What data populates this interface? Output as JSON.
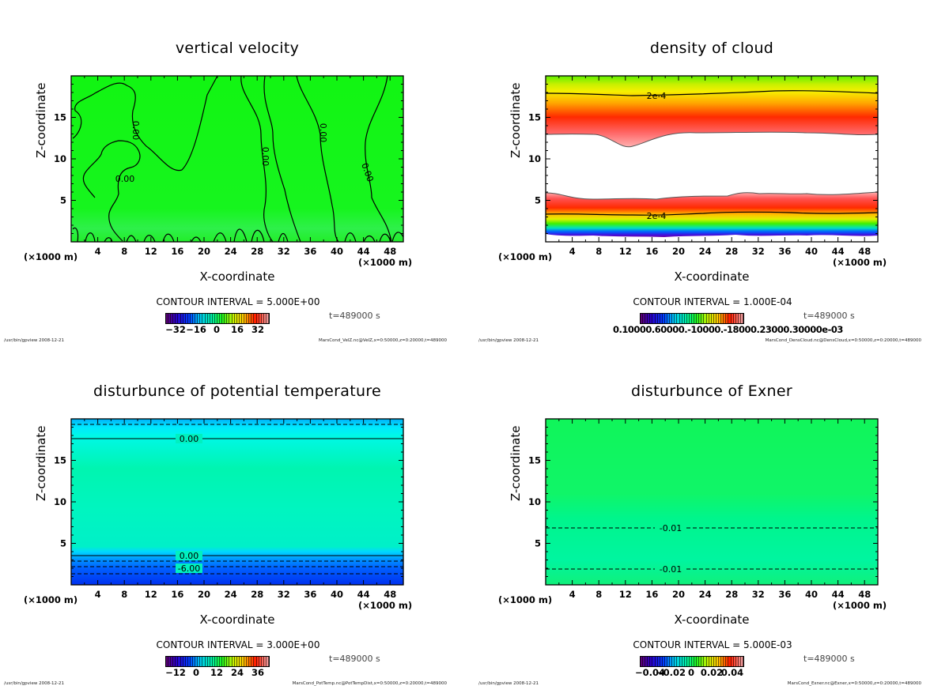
{
  "chart_data": [
    {
      "type": "heatmap",
      "title": "vertical velocity",
      "xlabel": "X-coordinate",
      "ylabel": "Z-coordinate",
      "x_unit_label": "(×1000 m)",
      "xlim": [
        0,
        50
      ],
      "ylim": [
        0,
        20
      ],
      "x_ticks": [
        "4",
        "8",
        "12",
        "16",
        "20",
        "24",
        "28",
        "32",
        "36",
        "40",
        "44",
        "48"
      ],
      "y_ticks": [
        "5",
        "10",
        "15"
      ],
      "contour_interval": "CONTOUR INTERVAL = 5.000E+00",
      "contour_labels": [
        "0.00",
        "0.00",
        "0.00",
        "0.00",
        "0.00",
        "0.00"
      ],
      "colorbar_ticks": [
        "−32",
        "−16",
        "0",
        "16",
        "32"
      ],
      "colorbar_range": [
        -40,
        40
      ],
      "time": "t=489000 s",
      "footer_left": "/usr/bin/gpview  2008-12-21",
      "footer_right": "MarsCond_VelZ.nc@VelZ,x=0:50000,z=0:20000,t=489000",
      "field_color": "#19f519"
    },
    {
      "type": "heatmap",
      "title": "density of cloud",
      "xlabel": "X-coordinate",
      "ylabel": "Z-coordinate",
      "x_unit_label": "(×1000 m)",
      "xlim": [
        0,
        50
      ],
      "ylim": [
        0,
        20
      ],
      "x_ticks": [
        "4",
        "8",
        "12",
        "16",
        "20",
        "24",
        "28",
        "32",
        "36",
        "40",
        "44",
        "48"
      ],
      "y_ticks": [
        "5",
        "10",
        "15"
      ],
      "contour_interval": "CONTOUR INTERVAL = 1.000E-04",
      "contour_labels": [
        "2e-4",
        "2e-4"
      ],
      "colorbar_tick_text": "0.10000.60000.-10000.-18000.23000.30000e-03",
      "colorbar_range": [
        0,
        0.0003
      ],
      "time": "t=489000 s",
      "footer_left": "/usr/bin/gpview  2008-12-21",
      "footer_right": "MarsCond_DensCloud.nc@DensCloud,x=0:50000,z=0:20000,t=489000"
    },
    {
      "type": "heatmap",
      "title": "disturbunce of potential temperature",
      "xlabel": "X-coordinate",
      "ylabel": "Z-coordinate",
      "x_unit_label": "(×1000 m)",
      "xlim": [
        0,
        50
      ],
      "ylim": [
        0,
        20
      ],
      "x_ticks": [
        "4",
        "8",
        "12",
        "16",
        "20",
        "24",
        "28",
        "32",
        "36",
        "40",
        "44",
        "48"
      ],
      "y_ticks": [
        "5",
        "10",
        "15"
      ],
      "contour_interval": "CONTOUR INTERVAL = 3.000E+00",
      "contour_labels": [
        "0.00",
        "0.00",
        "-6.00"
      ],
      "colorbar_ticks": [
        "−12",
        "0",
        "12",
        "24",
        "36"
      ],
      "colorbar_range": [
        -18,
        42
      ],
      "time": "t=489000 s",
      "footer_left": "/usr/bin/gpview  2008-12-21",
      "footer_right": "MarsCond_PotTemp.nc@PotTempDist,x=0:50000,z=0:20000,t=489000"
    },
    {
      "type": "heatmap",
      "title": "disturbunce of Exner",
      "xlabel": "X-coordinate",
      "ylabel": "Z-coordinate",
      "x_unit_label": "(×1000 m)",
      "xlim": [
        0,
        50
      ],
      "ylim": [
        0,
        20
      ],
      "x_ticks": [
        "4",
        "8",
        "12",
        "16",
        "20",
        "24",
        "28",
        "32",
        "36",
        "40",
        "44",
        "48"
      ],
      "y_ticks": [
        "5",
        "10",
        "15"
      ],
      "contour_interval": "CONTOUR INTERVAL = 5.000E-03",
      "contour_labels": [
        "-0.01",
        "-0.01"
      ],
      "colorbar_ticks": [
        "−0.04",
        "−0.02",
        "0",
        "0.02",
        "0.04"
      ],
      "colorbar_range": [
        -0.05,
        0.05
      ],
      "time": "t=489000 s",
      "footer_left": "/usr/bin/gpview  2008-12-21",
      "footer_right": "MarsCond_Exner.nc@Exner,x=0:50000,z=0:20000,t=489000"
    }
  ]
}
